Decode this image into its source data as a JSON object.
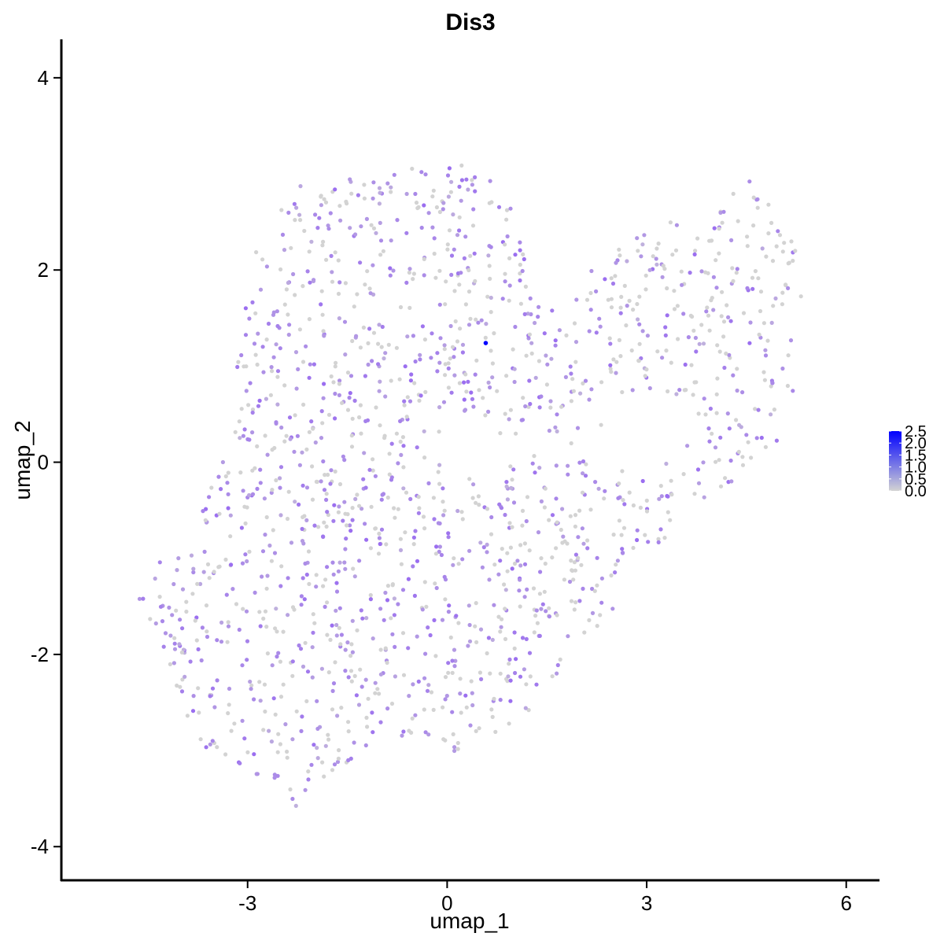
{
  "chart_data": {
    "type": "scatter",
    "title": "Dis3",
    "xlabel": "umap_1",
    "ylabel": "umap_2",
    "xlim": [
      -5.8,
      6.5
    ],
    "ylim": [
      -4.35,
      4.4
    ],
    "x_ticks": [
      -3,
      0,
      3,
      6
    ],
    "y_ticks": [
      -4,
      -2,
      0,
      2,
      4
    ],
    "x_tick_labels": [
      "-3",
      "0",
      "3",
      "6"
    ],
    "y_tick_labels": [
      "-4",
      "-2",
      "0",
      "2",
      "4"
    ],
    "grid": false,
    "legend": {
      "placement": "right",
      "type": "colorbar",
      "min": 0.0,
      "max": 2.5,
      "labels": [
        "2.5",
        "2.0",
        "1.5",
        "1.0",
        "0.5",
        "0.0"
      ],
      "low_color": "#d3d3d3",
      "high_color": "#0000ff"
    },
    "colors": {
      "low": "#d3d3d3",
      "mid": "#9b6ef0",
      "high": "#0000ff"
    },
    "highlight_point": {
      "x": 0.58,
      "y": 1.24,
      "value": 2.5
    }
  }
}
